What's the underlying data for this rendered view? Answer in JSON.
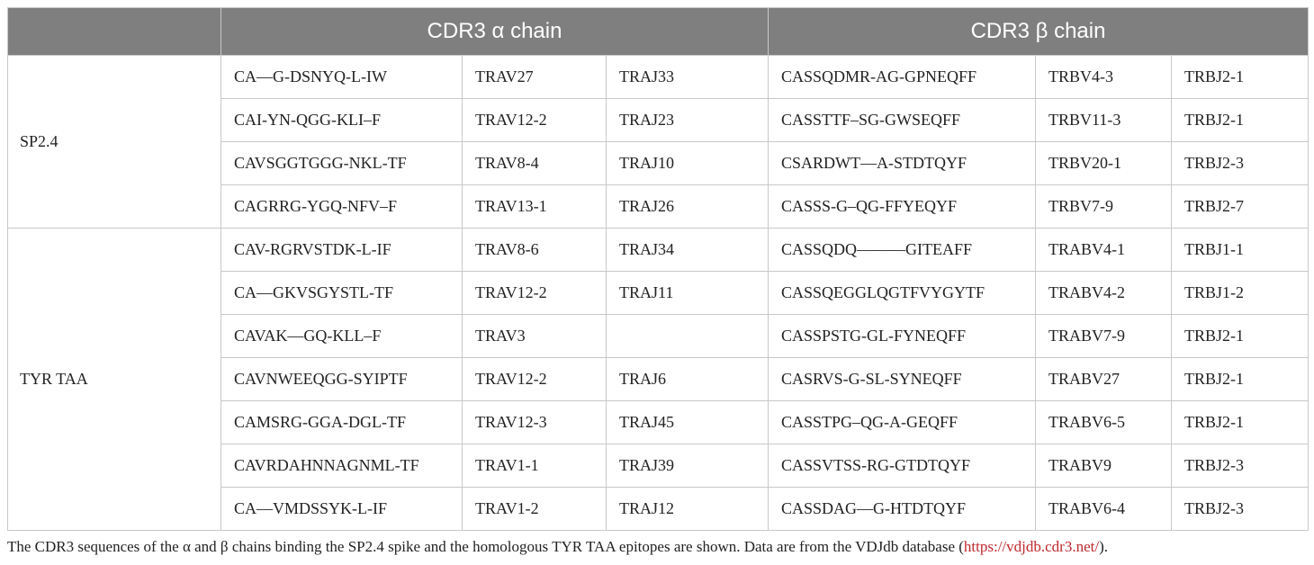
{
  "header": {
    "blank": "",
    "alpha": "CDR3 α chain",
    "beta": "CDR3 β chain"
  },
  "groups": [
    {
      "label": "SP2.4",
      "rows": [
        [
          "CA—G-DSNYQ-L-IW",
          "TRAV27",
          "TRAJ33",
          "CASSQDMR-AG-GPNEQFF",
          "TRBV4-3",
          "TRBJ2-1"
        ],
        [
          "CAI-YN-QGG-KLI–F",
          "TRAV12-2",
          "TRAJ23",
          "CASSTTF–SG-GWSEQFF",
          "TRBV11-3",
          "TRBJ2-1"
        ],
        [
          "CAVSGGTGGG-NKL-TF",
          "TRAV8-4",
          "TRAJ10",
          "CSARDWT—A-STDTQYF",
          "TRBV20-1",
          "TRBJ2-3"
        ],
        [
          "CAGRRG-YGQ-NFV–F",
          "TRAV13-1",
          "TRAJ26",
          "CASSS-G–QG-FFYEQYF",
          "TRBV7-9",
          "TRBJ2-7"
        ]
      ]
    },
    {
      "label": "TYR TAA",
      "rows": [
        [
          "CAV-RGRVSTDK-L-IF",
          "TRAV8-6",
          "TRAJ34",
          "CASSQDQ———GITEAFF",
          "TRABV4-1",
          "TRBJ1-1"
        ],
        [
          "CA—GKVSGYSTL-TF",
          "TRAV12-2",
          "TRAJ11",
          "CASSQEGGLQGTFVYGYTF",
          "TRABV4-2",
          "TRBJ1-2"
        ],
        [
          "CAVAK—GQ-KLL–F",
          "TRAV3",
          "",
          "CASSPSTG-GL-FYNEQFF",
          "TRABV7-9",
          "TRBJ2-1"
        ],
        [
          "CAVNWEEQGG-SYIPTF",
          "TRAV12-2",
          "TRAJ6",
          "CASRVS-G-SL-SYNEQFF",
          "TRABV27",
          "TRBJ2-1"
        ],
        [
          "CAMSRG-GGA-DGL-TF",
          "TRAV12-3",
          "TRAJ45",
          "CASSTPG–QG-A-GEQFF",
          "TRABV6-5",
          "TRBJ2-1"
        ],
        [
          "CAVRDAHNNAGNML-TF",
          "TRAV1-1",
          "TRAJ39",
          "CASSVTSS-RG-GTDTQYF",
          "TRABV9",
          "TRBJ2-3"
        ],
        [
          "CA—VMDSSYK-L-IF",
          "TRAV1-2",
          "TRAJ12",
          "CASSDAG—G-HTDTQYF",
          "TRABV6-4",
          "TRBJ2-3"
        ]
      ]
    }
  ],
  "caption": {
    "text": "The CDR3 sequences of the α and β chains binding the SP2.4 spike and the homologous TYR TAA epitopes are shown. Data are from the VDJdb database (",
    "link": "https://vdjdb.cdr3.net/",
    "suffix": ")."
  },
  "colors": {
    "header_bg": "#7f7f7f",
    "header_text": "#ffffff",
    "grid": "#c8c8c8",
    "link": "#c0282d"
  }
}
